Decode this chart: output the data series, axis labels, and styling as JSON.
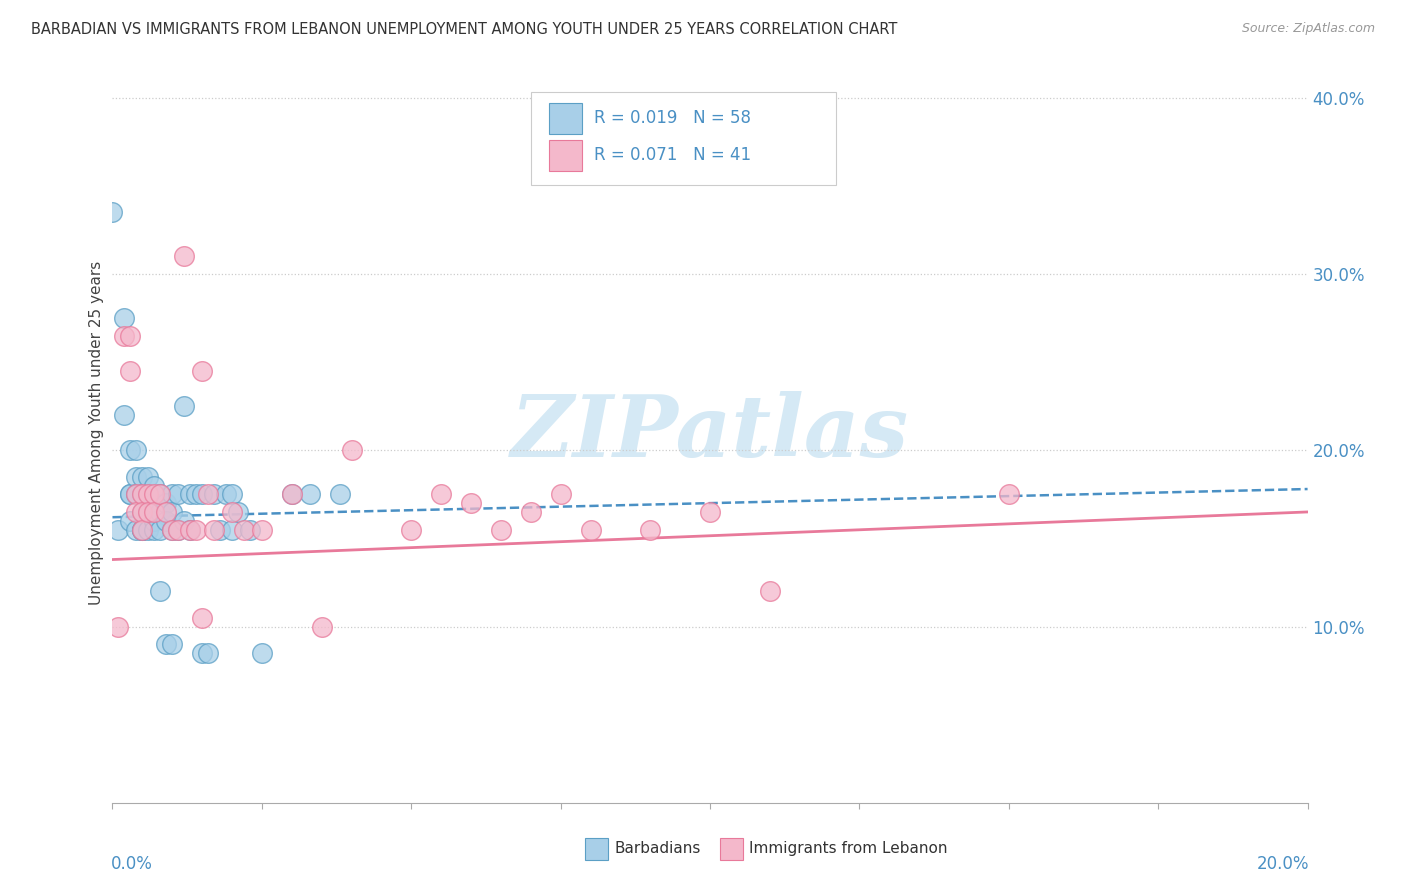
{
  "title": "BARBADIAN VS IMMIGRANTS FROM LEBANON UNEMPLOYMENT AMONG YOUTH UNDER 25 YEARS CORRELATION CHART",
  "source": "Source: ZipAtlas.com",
  "ylabel": "Unemployment Among Youth under 25 years",
  "legend_label1": "Barbadians",
  "legend_label2": "Immigrants from Lebanon",
  "R1": "0.019",
  "N1": "58",
  "R2": "0.071",
  "N2": "41",
  "color_blue": "#a8cfe8",
  "color_pink": "#f4b8cb",
  "edge_blue": "#5b9fc5",
  "edge_pink": "#e8799a",
  "line_blue": "#4a90c4",
  "line_pink": "#e8799a",
  "watermark_color": "#d5e9f5",
  "xmin": 0.0,
  "xmax": 0.2,
  "ymin": 0.0,
  "ymax": 0.42,
  "blue_x": [
    0.0,
    0.001,
    0.002,
    0.002,
    0.003,
    0.003,
    0.003,
    0.003,
    0.004,
    0.004,
    0.004,
    0.004,
    0.005,
    0.005,
    0.005,
    0.005,
    0.005,
    0.005,
    0.006,
    0.006,
    0.006,
    0.006,
    0.007,
    0.007,
    0.007,
    0.007,
    0.008,
    0.008,
    0.008,
    0.008,
    0.009,
    0.009,
    0.009,
    0.01,
    0.01,
    0.01,
    0.01,
    0.011,
    0.011,
    0.012,
    0.012,
    0.013,
    0.013,
    0.014,
    0.015,
    0.015,
    0.016,
    0.017,
    0.018,
    0.019,
    0.02,
    0.02,
    0.021,
    0.023,
    0.025,
    0.03,
    0.033,
    0.038
  ],
  "blue_y": [
    0.335,
    0.155,
    0.275,
    0.22,
    0.2,
    0.175,
    0.175,
    0.16,
    0.2,
    0.185,
    0.175,
    0.155,
    0.185,
    0.175,
    0.165,
    0.155,
    0.155,
    0.155,
    0.185,
    0.175,
    0.165,
    0.155,
    0.18,
    0.17,
    0.16,
    0.155,
    0.175,
    0.165,
    0.155,
    0.12,
    0.17,
    0.16,
    0.09,
    0.175,
    0.165,
    0.155,
    0.09,
    0.175,
    0.155,
    0.225,
    0.16,
    0.175,
    0.155,
    0.175,
    0.175,
    0.085,
    0.085,
    0.175,
    0.155,
    0.175,
    0.175,
    0.155,
    0.165,
    0.155,
    0.085,
    0.175,
    0.175,
    0.175
  ],
  "pink_x": [
    0.001,
    0.002,
    0.003,
    0.003,
    0.004,
    0.004,
    0.005,
    0.005,
    0.005,
    0.006,
    0.006,
    0.007,
    0.007,
    0.008,
    0.009,
    0.01,
    0.011,
    0.012,
    0.013,
    0.014,
    0.015,
    0.015,
    0.016,
    0.017,
    0.02,
    0.022,
    0.025,
    0.03,
    0.035,
    0.04,
    0.05,
    0.055,
    0.06,
    0.065,
    0.07,
    0.075,
    0.08,
    0.09,
    0.1,
    0.11,
    0.15
  ],
  "pink_y": [
    0.1,
    0.265,
    0.265,
    0.245,
    0.175,
    0.165,
    0.175,
    0.165,
    0.155,
    0.175,
    0.165,
    0.175,
    0.165,
    0.175,
    0.165,
    0.155,
    0.155,
    0.31,
    0.155,
    0.155,
    0.245,
    0.105,
    0.175,
    0.155,
    0.165,
    0.155,
    0.155,
    0.175,
    0.1,
    0.2,
    0.155,
    0.175,
    0.17,
    0.155,
    0.165,
    0.175,
    0.155,
    0.155,
    0.165,
    0.12,
    0.175
  ],
  "blue_line_x0": 0.0,
  "blue_line_x1": 0.2,
  "blue_line_y0": 0.162,
  "blue_line_y1": 0.178,
  "pink_line_x0": 0.0,
  "pink_line_x1": 0.2,
  "pink_line_y0": 0.138,
  "pink_line_y1": 0.165
}
